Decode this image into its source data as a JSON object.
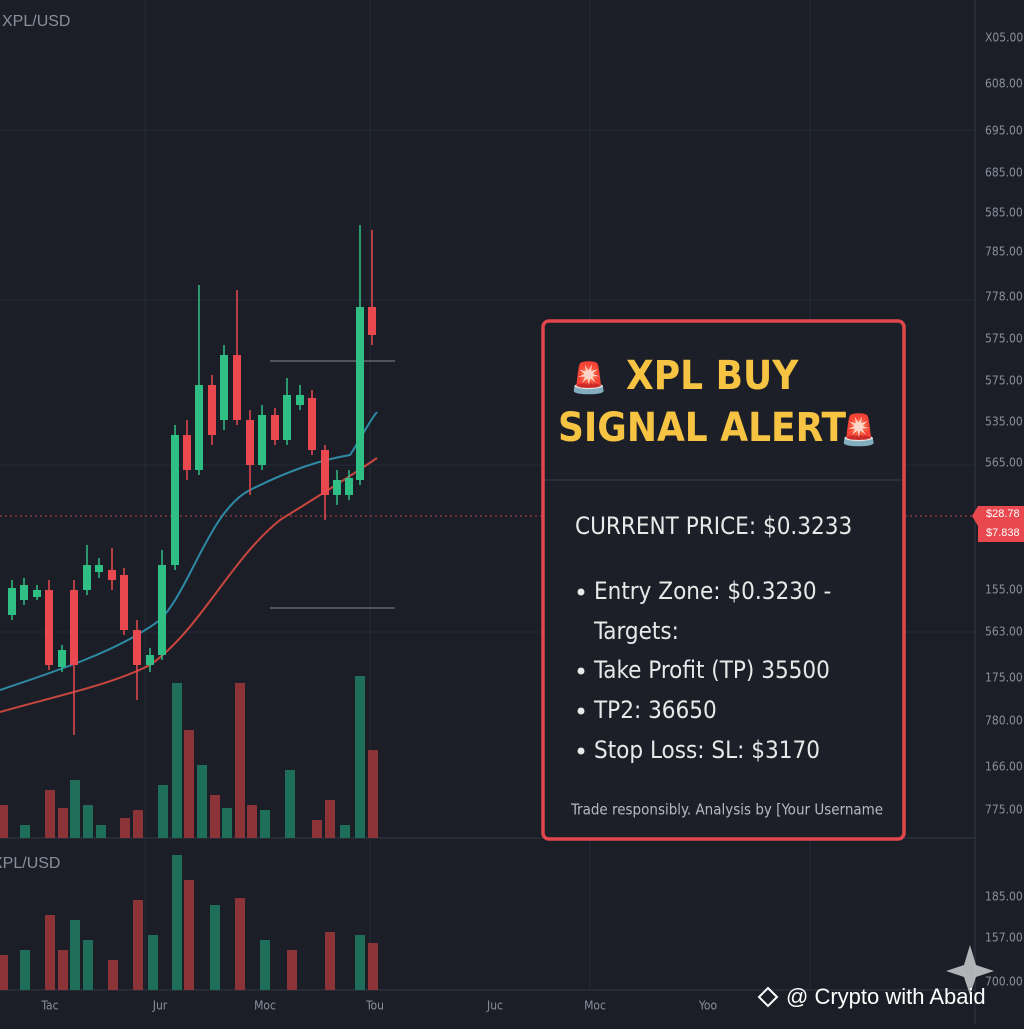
{
  "header": {
    "symbol": "XPL/USD"
  },
  "lower_panel": {
    "label": "XPL/USD"
  },
  "price_axis": [
    "X05.00",
    "608.00",
    "695.00",
    "685.00",
    "585.00",
    "785.00",
    "778.00",
    "575.00",
    "575.00",
    "535.00",
    "565.00",
    "155.00",
    "563.00",
    "175.00",
    "780.00",
    "166.00",
    "775.00",
    "185.00",
    "157.00",
    "700.00"
  ],
  "price_tags": [
    "$28.78",
    "$7.838"
  ],
  "time_axis": [
    "Tac",
    "Jur",
    "Moc",
    "Tou",
    "Juc",
    "Moc",
    "Yoo"
  ],
  "card": {
    "title_lines": [
      "XPL BUY",
      "SIGNAL ALERT"
    ],
    "current_price": "CURRENT PRICE: $0.3233",
    "bullets": [
      "Entry Zone: $0.3230 -",
      "Take Profit (TP) 35500",
      "TP2: 36650",
      "Stop Loss: SL: $3170"
    ],
    "targets_label": "Targets:",
    "footer": "Trade responsibly. Analysis by [Your Username"
  },
  "watermark": "@ Crypto with Abaid"
}
